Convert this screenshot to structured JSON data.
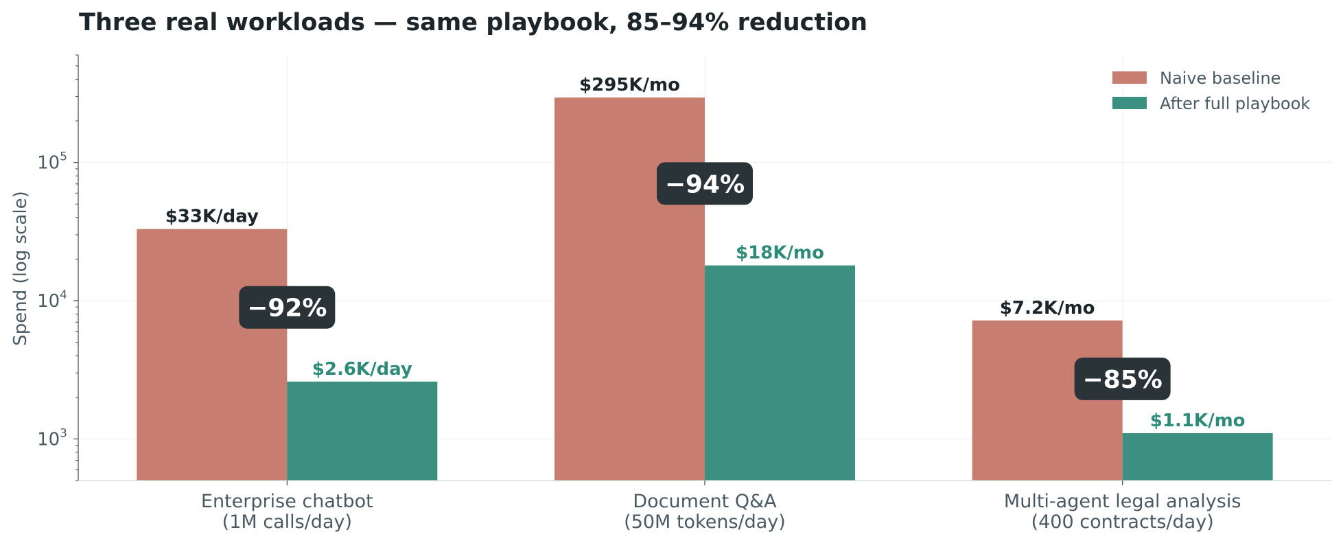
{
  "chart_data": {
    "type": "bar",
    "title": "Three real workloads — same playbook, 85–94% reduction",
    "ylabel": "Spend (log scale)",
    "yscale": "log",
    "ylim": [
      500,
      600000
    ],
    "yticks": [
      {
        "value": 1000,
        "base": "10",
        "exp": "3"
      },
      {
        "value": 10000,
        "base": "10",
        "exp": "4"
      },
      {
        "value": 100000,
        "base": "10",
        "exp": "5"
      }
    ],
    "grid": true,
    "legend_position": "top-right",
    "categories": [
      {
        "line1": "Enterprise chatbot",
        "line2": "(1M calls/day)"
      },
      {
        "line1": "Document Q&A",
        "line2": "(50M tokens/day)"
      },
      {
        "line1": "Multi-agent legal analysis",
        "line2": "(400 contracts/day)"
      }
    ],
    "series": [
      {
        "name": "Naive baseline",
        "color": "#c77e71",
        "values": [
          33000,
          295000,
          7200
        ],
        "labels": [
          "$33K/day",
          "$295K/mo",
          "$7.2K/mo"
        ]
      },
      {
        "name": "After full playbook",
        "color": "#3c9082",
        "label_color": "#2e8b77",
        "values": [
          2600,
          18000,
          1100
        ],
        "labels": [
          "$2.6K/day",
          "$18K/mo",
          "$1.1K/mo"
        ]
      }
    ],
    "reductions": [
      "−92%",
      "−94%",
      "−85%"
    ],
    "badge_color": "#2a3438"
  }
}
